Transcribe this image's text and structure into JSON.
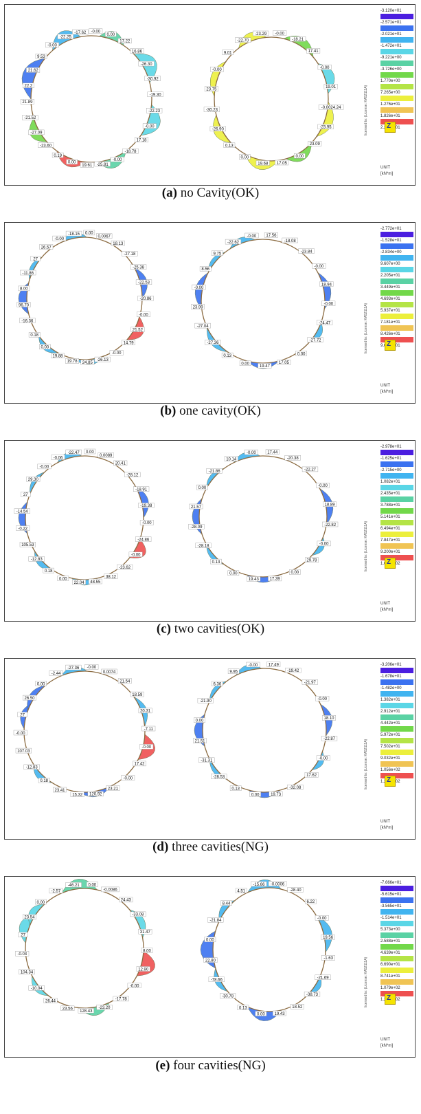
{
  "figures": [
    {
      "letter": "(a)",
      "caption": "no Cavity(OK)",
      "legend": [
        "-3.120e+01",
        "-2.571e+01",
        "-2.021e+01",
        "-1.472e+01",
        "-9.221e+00",
        "-3.726e+00",
        "1.770e+00",
        "7.265e+00",
        "1.276e+01",
        "1.826e+01",
        "2.375e+01"
      ],
      "left_labels": [
        "-17.62",
        "-0.00",
        "0.00",
        "17.22",
        "16.86",
        "-26.30",
        "-30.92",
        "-19.30",
        "-22.23",
        "-0.00",
        "17.18",
        "-18.78",
        "-0.00",
        "-25.81",
        "19.61",
        "0.00",
        "0.19",
        "-23.60",
        "-27.09",
        "-21.52",
        "21.89",
        "22.2",
        "21.62",
        "9.53",
        "-0.00",
        "-22.25"
      ],
      "right_labels": [
        "-23.29",
        "-0.00",
        "-18.21",
        "17.41",
        "-0.00",
        "19.01",
        "-0.0024.24",
        "-23.95",
        "23.09",
        "0.00",
        "17.05",
        "19.68",
        "0.00",
        "0.13",
        "-26.90",
        "-30.23",
        "23.75",
        "-0.00",
        "9.01",
        "-22.70"
      ]
    },
    {
      "letter": "(b)",
      "caption": "one cavity(OK)",
      "legend": [
        "-2.772e+01",
        "-1.528e+01",
        "-2.834e+00",
        "9.607e+00",
        "2.205e+01",
        "3.449e+01",
        "4.693e+01",
        "5.937e+01",
        "7.181e+01",
        "8.426e+01",
        "9.670e+01"
      ],
      "left_labels": [
        "-18.15",
        "0.00",
        "0.0067",
        "18.13",
        "-27.18",
        "-25.38",
        "-22.53",
        "-20.86",
        "-0.00",
        "21.52",
        "14.79",
        "-0.00",
        "-26.13",
        "24.85",
        "19.78",
        "19.88",
        "0.00",
        "0.18",
        "-16.36",
        "96.70",
        "8.00",
        "-11.86",
        "27",
        "26.57",
        "-0.00"
      ],
      "right_labels": [
        "-0.00",
        "17.56",
        "-18.08",
        "-23.84",
        "-0.00",
        "18.94",
        "-0.00",
        "-24.47",
        "-27.72",
        "0.00",
        "17.05",
        "19.47",
        "0.00",
        "0.13",
        "-27.36",
        "-27.04",
        "23.99",
        "-0.00",
        "8.56",
        "9.75",
        "-22.62"
      ]
    },
    {
      "letter": "(c)",
      "caption": "two cavities(OK)",
      "legend": [
        "-2.978e+01",
        "-1.625e+01",
        "-2.715e+00",
        "1.082e+01",
        "2.435e+01",
        "3.788e+01",
        "5.141e+01",
        "6.494e+01",
        "7.847e+01",
        "9.200e+01",
        "1.055e+02"
      ],
      "left_labels": [
        "-22.47",
        "0.00",
        "0.0089",
        "20.41",
        "-28.12",
        "-18.91",
        "-19.38",
        "-0.00",
        "-24.86",
        "-0.00",
        "-23.62",
        "38.12",
        "48.55",
        "22.04",
        "0.00",
        "0.18",
        "-12.83",
        "105.53",
        "-0.22",
        "-14.54",
        "27",
        "29.30",
        "-0.00",
        "-0.06"
      ],
      "right_labels": [
        "-0.00",
        "17.44",
        "-20.38",
        "-22.27",
        "-0.00",
        "18.89",
        "-22.82",
        "-0.00",
        "29.78",
        "0.00",
        "17.39",
        "19.43",
        "0.00",
        "0.13",
        "-28.18",
        "-28.09",
        "21.57",
        "0.00",
        "-21.86",
        "10.14"
      ]
    },
    {
      "letter": "(d)",
      "caption": "three cavities(NG)",
      "legend": [
        "-3.206e+01",
        "-1.678e+01",
        "-1.482e+00",
        "1.382e+01",
        "2.912e+01",
        "4.442e+01",
        "5.972e+01",
        "7.502e+01",
        "9.032e+01",
        "1.056e+02",
        "1.209e+02"
      ],
      "left_labels": [
        "-27.36",
        "-0.00",
        "0.0074",
        "21.54",
        "18.59",
        "20.31",
        "-7.11",
        "-0.00",
        "17.42",
        "-0.00",
        "23.21",
        "120.92",
        "15.32",
        "23.41",
        "0.18",
        "-12.83",
        "107.03",
        "-0.00",
        "27",
        "26.50",
        "0.00",
        "-2.44"
      ],
      "right_labels": [
        "-0.00",
        "17.49",
        "-19.42",
        "-21.97",
        "-0.00",
        "18.10",
        "-22.87",
        "-0.00",
        "17.62",
        "-32.08",
        "19.73",
        "0.00",
        "0.13",
        "-28.53",
        "-31.31",
        "21.51",
        "0.00",
        "-21.90",
        "6.36",
        "9.95"
      ]
    },
    {
      "letter": "(e)",
      "caption": "four cavities(NG)",
      "legend": [
        "-7.666e+01",
        "-5.615e+01",
        "-3.565e+01",
        "-1.514e+01",
        "5.373e+00",
        "2.588e+01",
        "4.639e+01",
        "6.690e+01",
        "8.741e+01",
        "1.079e+02",
        "1.284e+02"
      ],
      "left_labels": [
        "-46.21",
        "0.00",
        "-0.0086",
        "24.43",
        "-33.08",
        "31.47",
        "8.00",
        "12.90",
        "-0.00",
        "-17.78",
        "-23.20",
        "128.43",
        "23.56",
        "26.44",
        "-10.04",
        "104.34",
        "-0.03",
        "27",
        "23.54",
        "0.00",
        "-2.57"
      ],
      "right_labels": [
        "-15.66",
        "-0.0006",
        "-28.40",
        "6.22",
        "-0.00",
        "19.56",
        "-1.63",
        "-21.69",
        "-38.73",
        "18.52",
        "19.43",
        "0.00",
        "0.13",
        "-30.78",
        "-78.66",
        "22.80",
        "0.00",
        "-21.84",
        "8.44",
        "4.51"
      ]
    }
  ],
  "panel_unit": "UNIT",
  "panel_unit_value": "[kN*m]",
  "license_text": "licensed to: (License: KA52111A)",
  "logo_text": "Z",
  "legend_colors": [
    "#4b1ee0",
    "#3b72f0",
    "#41b4f0",
    "#5ad6e6",
    "#5ad2a4",
    "#72d84a",
    "#b4e446",
    "#ecef3c",
    "#f0c454",
    "#ee5050",
    "#b84a14"
  ]
}
